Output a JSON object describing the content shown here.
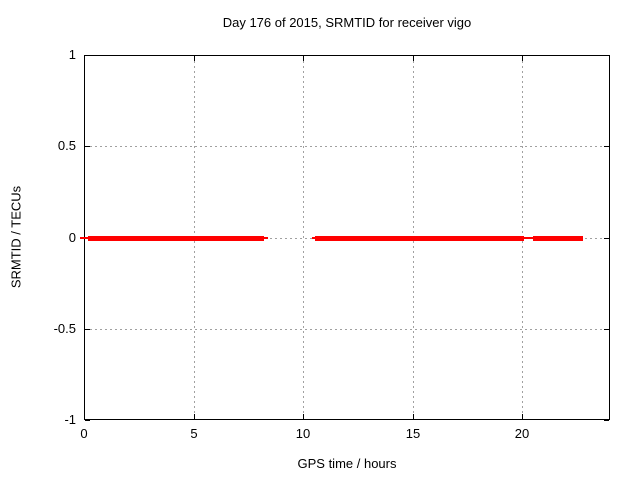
{
  "chart_data": {
    "type": "line",
    "title": "Day 176 of 2015, SRMTID for receiver vigo",
    "xlabel": "GPS time / hours",
    "ylabel": "SRMTID / TECUs",
    "xlim": [
      0,
      24
    ],
    "ylim": [
      -1,
      1
    ],
    "xticks": [
      0,
      5,
      10,
      15,
      20
    ],
    "xtick_labels": [
      "0",
      "5",
      "10",
      "15",
      "20"
    ],
    "yticks": [
      1,
      0.5,
      0,
      -0.5,
      -1
    ],
    "ytick_labels": [
      "1",
      "0.5",
      "0",
      "-0.5",
      "-1"
    ],
    "grid": true,
    "grid_style": "dashed",
    "legend": "none",
    "series": [
      {
        "name": "SRMTID",
        "value_tecus": 0,
        "color": "#ff0000",
        "thick_segments_hours": [
          [
            0.2,
            8.22
          ],
          [
            10.55,
            20.08
          ],
          [
            20.5,
            22.77
          ]
        ],
        "thin_segments_hours": [
          [
            -0.18,
            0.25
          ],
          [
            8.22,
            8.4
          ],
          [
            10.4,
            10.55
          ],
          [
            20.08,
            20.5
          ]
        ]
      }
    ],
    "colors": {
      "line": "#ff0000",
      "grid": "#a0a0a0",
      "axis": "#000000",
      "background": "#ffffff",
      "text": "#000000"
    }
  }
}
